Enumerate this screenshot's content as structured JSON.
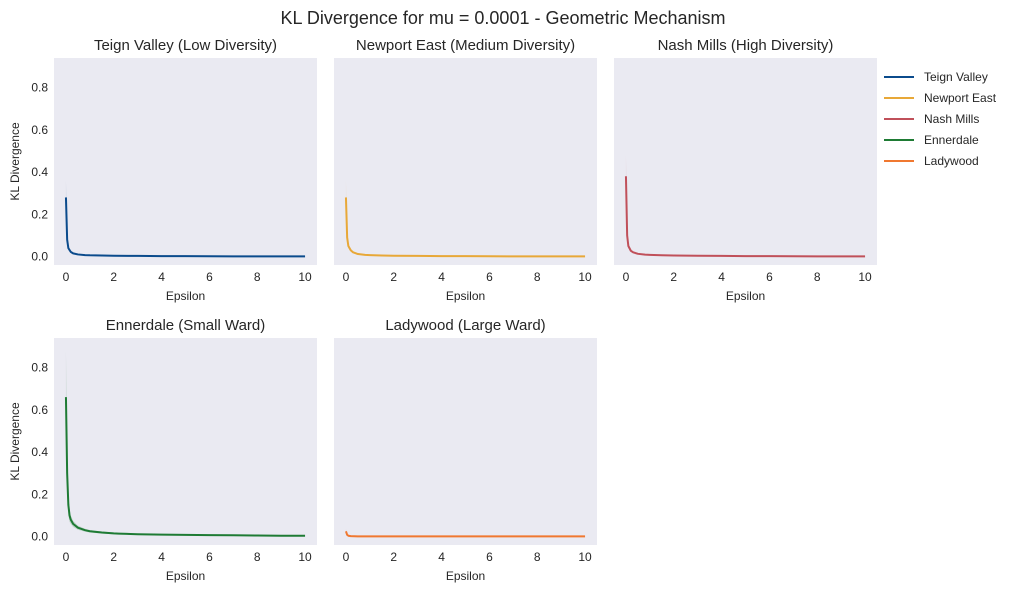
{
  "figure_title": "KL Divergence for mu = 0.0001 - Geometric Mechanism",
  "chart_data": [
    {
      "type": "line",
      "title": "Teign Valley (Low Diversity)",
      "xlabel": "Epsilon",
      "ylabel": "KL Divergence",
      "xlim": [
        -0.5,
        10.5
      ],
      "ylim": [
        -0.04,
        0.94
      ],
      "xticks": [
        0,
        2,
        4,
        6,
        8,
        10
      ],
      "yticks": [
        0.0,
        0.2,
        0.4,
        0.6,
        0.8
      ],
      "series": [
        {
          "name": "Teign Valley",
          "color": "#0b4b8c",
          "x": [
            0.0,
            0.05,
            0.1,
            0.2,
            0.3,
            0.5,
            0.8,
            1,
            1.5,
            2,
            3,
            4,
            5,
            6,
            7,
            8,
            9,
            10
          ],
          "y": [
            0.28,
            0.08,
            0.04,
            0.022,
            0.015,
            0.01,
            0.007,
            0.006,
            0.005,
            0.004,
            0.003,
            0.002,
            0.002,
            0.0015,
            0.001,
            0.001,
            0.001,
            0.001
          ],
          "ci_upper": [
            0.36,
            0.1,
            0.05,
            0.026,
            0.018,
            0.012,
            0.008,
            0.007,
            0.006,
            0.005,
            0.004,
            0.003,
            0.003,
            0.002,
            0.002,
            0.002,
            0.002,
            0.002
          ],
          "ci_lower": [
            0.2,
            0.06,
            0.03,
            0.018,
            0.012,
            0.008,
            0.006,
            0.005,
            0.004,
            0.003,
            0.002,
            0.001,
            0.001,
            0.001,
            0.0005,
            0.0005,
            0.0005,
            0.0005
          ]
        }
      ]
    },
    {
      "type": "line",
      "title": "Newport East (Medium Diversity)",
      "xlabel": "Epsilon",
      "ylabel": "",
      "xlim": [
        -0.5,
        10.5
      ],
      "ylim": [
        -0.04,
        0.94
      ],
      "xticks": [
        0,
        2,
        4,
        6,
        8,
        10
      ],
      "yticks": [
        0.0,
        0.2,
        0.4,
        0.6,
        0.8
      ],
      "series": [
        {
          "name": "Newport East",
          "color": "#e8a838",
          "x": [
            0.0,
            0.05,
            0.1,
            0.2,
            0.3,
            0.5,
            0.8,
            1,
            1.5,
            2,
            3,
            4,
            5,
            6,
            7,
            8,
            9,
            10
          ],
          "y": [
            0.28,
            0.09,
            0.05,
            0.03,
            0.02,
            0.012,
            0.008,
            0.007,
            0.005,
            0.004,
            0.003,
            0.002,
            0.002,
            0.0015,
            0.001,
            0.001,
            0.001,
            0.001
          ],
          "ci_upper": [
            0.36,
            0.11,
            0.06,
            0.035,
            0.024,
            0.014,
            0.01,
            0.008,
            0.006,
            0.005,
            0.004,
            0.003,
            0.003,
            0.002,
            0.002,
            0.002,
            0.002,
            0.002
          ],
          "ci_lower": [
            0.2,
            0.07,
            0.04,
            0.025,
            0.016,
            0.01,
            0.006,
            0.006,
            0.004,
            0.003,
            0.002,
            0.001,
            0.001,
            0.001,
            0.0005,
            0.0005,
            0.0005,
            0.0005
          ]
        }
      ]
    },
    {
      "type": "line",
      "title": "Nash Mills (High Diversity)",
      "xlabel": "Epsilon",
      "ylabel": "",
      "xlim": [
        -0.5,
        10.5
      ],
      "ylim": [
        -0.04,
        0.94
      ],
      "xticks": [
        0,
        2,
        4,
        6,
        8,
        10
      ],
      "yticks": [
        0.0,
        0.2,
        0.4,
        0.6,
        0.8
      ],
      "series": [
        {
          "name": "Nash Mills",
          "color": "#c0505a",
          "x": [
            0.0,
            0.05,
            0.1,
            0.2,
            0.3,
            0.5,
            0.8,
            1,
            1.5,
            2,
            3,
            4,
            5,
            6,
            7,
            8,
            9,
            10
          ],
          "y": [
            0.38,
            0.1,
            0.05,
            0.028,
            0.02,
            0.013,
            0.009,
            0.008,
            0.006,
            0.005,
            0.004,
            0.003,
            0.002,
            0.002,
            0.0015,
            0.001,
            0.001,
            0.001
          ],
          "ci_upper": [
            0.48,
            0.13,
            0.06,
            0.034,
            0.024,
            0.016,
            0.011,
            0.009,
            0.007,
            0.006,
            0.005,
            0.004,
            0.003,
            0.003,
            0.002,
            0.002,
            0.002,
            0.002
          ],
          "ci_lower": [
            0.28,
            0.07,
            0.04,
            0.022,
            0.016,
            0.01,
            0.007,
            0.007,
            0.005,
            0.004,
            0.003,
            0.002,
            0.001,
            0.001,
            0.001,
            0.0005,
            0.0005,
            0.0005
          ]
        }
      ]
    },
    {
      "type": "line",
      "title": "Ennerdale (Small Ward)",
      "xlabel": "Epsilon",
      "ylabel": "KL Divergence",
      "xlim": [
        -0.5,
        10.5
      ],
      "ylim": [
        -0.04,
        0.94
      ],
      "xticks": [
        0,
        2,
        4,
        6,
        8,
        10
      ],
      "yticks": [
        0.0,
        0.2,
        0.4,
        0.6,
        0.8
      ],
      "series": [
        {
          "name": "Ennerdale",
          "color": "#1e7b34",
          "x": [
            0.0,
            0.05,
            0.1,
            0.15,
            0.2,
            0.3,
            0.5,
            0.8,
            1,
            1.5,
            2,
            2.2,
            3,
            4,
            5,
            6,
            7,
            8,
            9,
            10
          ],
          "y": [
            0.66,
            0.3,
            0.15,
            0.1,
            0.08,
            0.06,
            0.042,
            0.03,
            0.025,
            0.019,
            0.015,
            0.014,
            0.011,
            0.009,
            0.008,
            0.007,
            0.006,
            0.005,
            0.004,
            0.004
          ],
          "ci_upper": [
            0.88,
            0.4,
            0.2,
            0.13,
            0.1,
            0.075,
            0.052,
            0.037,
            0.031,
            0.024,
            0.019,
            0.017,
            0.014,
            0.011,
            0.01,
            0.009,
            0.008,
            0.007,
            0.006,
            0.005
          ],
          "ci_lower": [
            0.44,
            0.2,
            0.1,
            0.07,
            0.06,
            0.045,
            0.032,
            0.023,
            0.019,
            0.014,
            0.011,
            0.011,
            0.008,
            0.007,
            0.006,
            0.005,
            0.004,
            0.003,
            0.002,
            0.003
          ]
        }
      ]
    },
    {
      "type": "line",
      "title": "Ladywood (Large Ward)",
      "xlabel": "Epsilon",
      "ylabel": "",
      "xlim": [
        -0.5,
        10.5
      ],
      "ylim": [
        -0.04,
        0.94
      ],
      "xticks": [
        0,
        2,
        4,
        6,
        8,
        10
      ],
      "yticks": [
        0.0,
        0.2,
        0.4,
        0.6,
        0.8
      ],
      "series": [
        {
          "name": "Ladywood",
          "color": "#f07830",
          "x": [
            0.0,
            0.05,
            0.1,
            0.2,
            0.5,
            1,
            2,
            3,
            4,
            5,
            6,
            7,
            8,
            9,
            10
          ],
          "y": [
            0.025,
            0.008,
            0.004,
            0.002,
            0.001,
            0.001,
            0.001,
            0.001,
            0.001,
            0.001,
            0.001,
            0.001,
            0.001,
            0.001,
            0.001
          ],
          "ci_upper": [
            0.035,
            0.012,
            0.006,
            0.003,
            0.002,
            0.0015,
            0.0015,
            0.0015,
            0.0015,
            0.0015,
            0.0015,
            0.0015,
            0.0015,
            0.0015,
            0.0015
          ],
          "ci_lower": [
            0.015,
            0.005,
            0.002,
            0.001,
            0.0005,
            0.0005,
            0.0005,
            0.0005,
            0.0005,
            0.0005,
            0.0005,
            0.0005,
            0.0005,
            0.0005,
            0.0005
          ]
        }
      ]
    }
  ],
  "legend": {
    "location": "right",
    "entries": [
      {
        "label": "Teign Valley",
        "color": "#0b4b8c"
      },
      {
        "label": "Newport East",
        "color": "#e8a838"
      },
      {
        "label": "Nash Mills",
        "color": "#c0505a"
      },
      {
        "label": "Ennerdale",
        "color": "#1e7b34"
      },
      {
        "label": "Ladywood",
        "color": "#f07830"
      }
    ]
  }
}
